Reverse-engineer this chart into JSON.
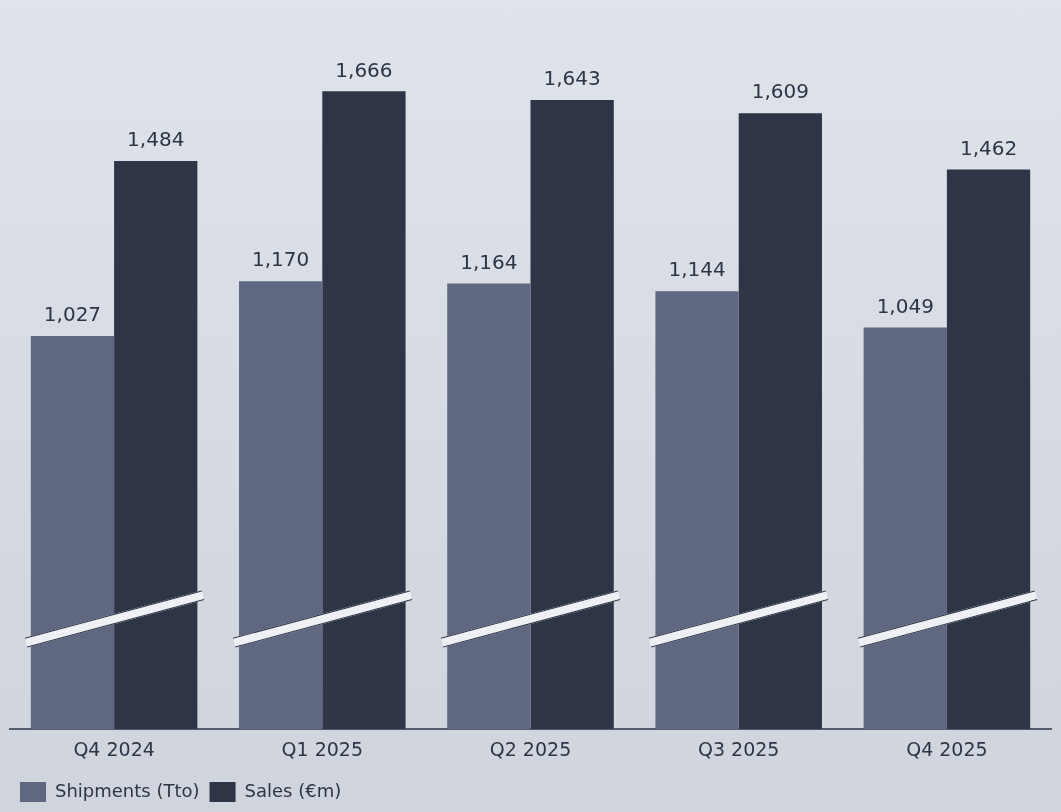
{
  "chart_data": {
    "type": "bar",
    "categories": [
      "Q4 2024",
      "Q1 2025",
      "Q2 2025",
      "Q3 2025",
      "Q4 2025"
    ],
    "series": [
      {
        "name": "Shipments (Tto)",
        "color": "#5f6880",
        "values": [
          1027,
          1170,
          1164,
          1144,
          1049
        ],
        "value_labels": [
          "1,027",
          "1,170",
          "1,164",
          "1,144",
          "1,049"
        ]
      },
      {
        "name": "Sales (€m)",
        "color": "#2e3546",
        "values": [
          1484,
          1666,
          1643,
          1609,
          1462
        ],
        "value_labels": [
          "1,484",
          "1,666",
          "1,643",
          "1,609",
          "1,462"
        ]
      }
    ],
    "grid": false,
    "legend": "bottom left"
  }
}
